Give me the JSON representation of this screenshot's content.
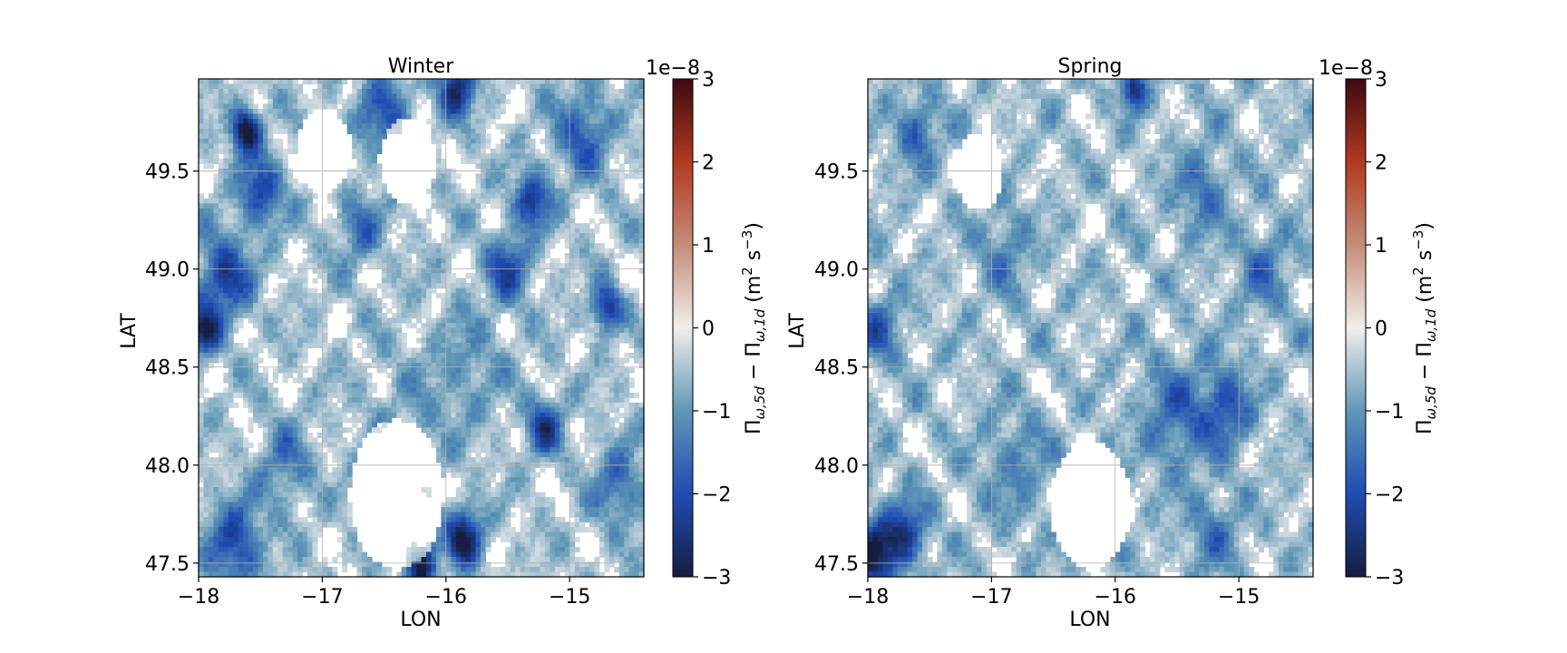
{
  "chart_data": [
    {
      "type": "heatmap",
      "title": "Winter",
      "xlabel": "LON",
      "ylabel": "LAT",
      "xlim": [
        -18.0,
        -14.4
      ],
      "ylim": [
        47.43,
        49.97
      ],
      "x_ticks": [
        -18,
        -17,
        -16,
        -15
      ],
      "x_tick_labels": [
        "−18",
        "−17",
        "−16",
        "−15"
      ],
      "y_ticks": [
        47.5,
        48.0,
        48.5,
        49.0,
        49.5
      ],
      "y_tick_labels": [
        "47.5",
        "48.0",
        "48.5",
        "49.0",
        "49.5"
      ],
      "grid": true,
      "colorbar": {
        "range": [
          -3,
          3
        ],
        "ticks": [
          -3,
          -2,
          -1,
          0,
          1,
          2,
          3
        ],
        "tick_labels": [
          "−3",
          "−2",
          "−1",
          "0",
          "1",
          "2",
          "3"
        ],
        "offset_label": "1e−8",
        "label": "Π_{ω,5d} − Π_{ω,1d} (m² s⁻³)",
        "label_parts": {
          "pi": "Π",
          "sub1": "ω,5d",
          "minus": " − ",
          "sub2": "ω,1d",
          "units_open": " (m",
          "sup1": "2",
          "units_mid": " s",
          "sup2": "−3",
          "units_close": ")"
        },
        "colormap": "balance (blue-white-red)"
      },
      "field": {
        "threshold": -0.2,
        "background": -0.45,
        "features": [
          {
            "lon": -17.62,
            "lat": 49.71,
            "value": -2.8,
            "radius": 0.08
          },
          {
            "lon": -15.92,
            "lat": 49.93,
            "value": -2.3,
            "radius": 0.1
          },
          {
            "lon": -17.95,
            "lat": 48.68,
            "value": -2.2,
            "radius": 0.08
          },
          {
            "lon": -15.85,
            "lat": 47.63,
            "value": -2.5,
            "radius": 0.1
          },
          {
            "lon": -16.2,
            "lat": 47.5,
            "value": -2.6,
            "radius": 0.09
          },
          {
            "lon": -14.7,
            "lat": 48.8,
            "value": -2.2,
            "radius": 0.08
          },
          {
            "lon": -15.3,
            "lat": 49.35,
            "value": -2.0,
            "radius": 0.1
          },
          {
            "lon": -17.5,
            "lat": 49.4,
            "value": -1.8,
            "radius": 0.12
          },
          {
            "lon": -17.8,
            "lat": 48.95,
            "value": -1.9,
            "radius": 0.15
          },
          {
            "lon": -17.7,
            "lat": 47.6,
            "value": -1.8,
            "radius": 0.15
          },
          {
            "lon": -15.2,
            "lat": 48.2,
            "value": -1.8,
            "radius": 0.1
          },
          {
            "lon": -15.5,
            "lat": 49.0,
            "value": -1.6,
            "radius": 0.12
          },
          {
            "lon": -16.5,
            "lat": 49.8,
            "value": -1.3,
            "radius": 0.15
          },
          {
            "lon": -14.9,
            "lat": 49.7,
            "value": -1.4,
            "radius": 0.15
          },
          {
            "lon": -16.7,
            "lat": 49.2,
            "value": -1.1,
            "radius": 0.12
          },
          {
            "lon": -14.6,
            "lat": 47.9,
            "value": -1.2,
            "radius": 0.14
          },
          {
            "lon": -16.3,
            "lat": 48.2,
            "value": -0.4,
            "radius": 0.25
          },
          {
            "lon": -15.8,
            "lat": 48.5,
            "value": -0.6,
            "radius": 0.2
          },
          {
            "lon": -17.3,
            "lat": 48.0,
            "value": -1.0,
            "radius": 0.14
          }
        ],
        "empty_regions": [
          {
            "lon": -16.4,
            "lat": 47.85,
            "radius": 0.35
          },
          {
            "lon": -17.0,
            "lat": 49.6,
            "radius": 0.2
          },
          {
            "lon": -16.3,
            "lat": 49.55,
            "radius": 0.2
          }
        ]
      }
    },
    {
      "type": "heatmap",
      "title": "Spring",
      "xlabel": "LON",
      "ylabel": "LAT",
      "xlim": [
        -18.0,
        -14.4
      ],
      "ylim": [
        47.43,
        49.97
      ],
      "x_ticks": [
        -18,
        -17,
        -16,
        -15
      ],
      "x_tick_labels": [
        "−18",
        "−17",
        "−16",
        "−15"
      ],
      "y_ticks": [
        47.5,
        48.0,
        48.5,
        49.0,
        49.5
      ],
      "y_tick_labels": [
        "47.5",
        "48.0",
        "48.5",
        "49.0",
        "49.5"
      ],
      "grid": true,
      "colorbar": {
        "range": [
          -3,
          3
        ],
        "ticks": [
          -3,
          -2,
          -1,
          0,
          1,
          2,
          3
        ],
        "tick_labels": [
          "−3",
          "−2",
          "−1",
          "0",
          "1",
          "2",
          "3"
        ],
        "offset_label": "1e−8",
        "label": "Π_{ω,5d} − Π_{ω,1d} (m² s⁻³)",
        "label_parts": {
          "pi": "Π",
          "sub1": "ω,5d",
          "minus": " − ",
          "sub2": "ω,1d",
          "units_open": " (m",
          "sup1": "2",
          "units_mid": " s",
          "sup2": "−3",
          "units_close": ")"
        },
        "colormap": "balance (blue-white-red)"
      },
      "field": {
        "threshold": -0.2,
        "background": -0.5,
        "features": [
          {
            "lon": -15.85,
            "lat": 49.92,
            "value": -2.2,
            "radius": 0.07
          },
          {
            "lon": -17.95,
            "lat": 47.55,
            "value": -2.4,
            "radius": 0.12
          },
          {
            "lon": -17.7,
            "lat": 47.65,
            "value": -1.8,
            "radius": 0.12
          },
          {
            "lon": -15.1,
            "lat": 48.3,
            "value": -1.4,
            "radius": 0.14
          },
          {
            "lon": -15.5,
            "lat": 48.25,
            "value": -1.1,
            "radius": 0.2
          },
          {
            "lon": -17.6,
            "lat": 49.7,
            "value": -1.3,
            "radius": 0.12
          },
          {
            "lon": -17.9,
            "lat": 48.7,
            "value": -1.2,
            "radius": 0.12
          },
          {
            "lon": -15.3,
            "lat": 49.4,
            "value": -1.0,
            "radius": 0.15
          },
          {
            "lon": -14.8,
            "lat": 49.0,
            "value": -0.9,
            "radius": 0.15
          },
          {
            "lon": -16.9,
            "lat": 49.1,
            "value": -0.8,
            "radius": 0.15
          },
          {
            "lon": -15.2,
            "lat": 47.65,
            "value": -0.9,
            "radius": 0.15
          },
          {
            "lon": -16.8,
            "lat": 48.0,
            "value": -0.7,
            "radius": 0.2
          }
        ],
        "empty_regions": [
          {
            "lon": -16.2,
            "lat": 47.8,
            "radius": 0.3
          },
          {
            "lon": -17.1,
            "lat": 49.5,
            "radius": 0.18
          }
        ]
      }
    }
  ]
}
